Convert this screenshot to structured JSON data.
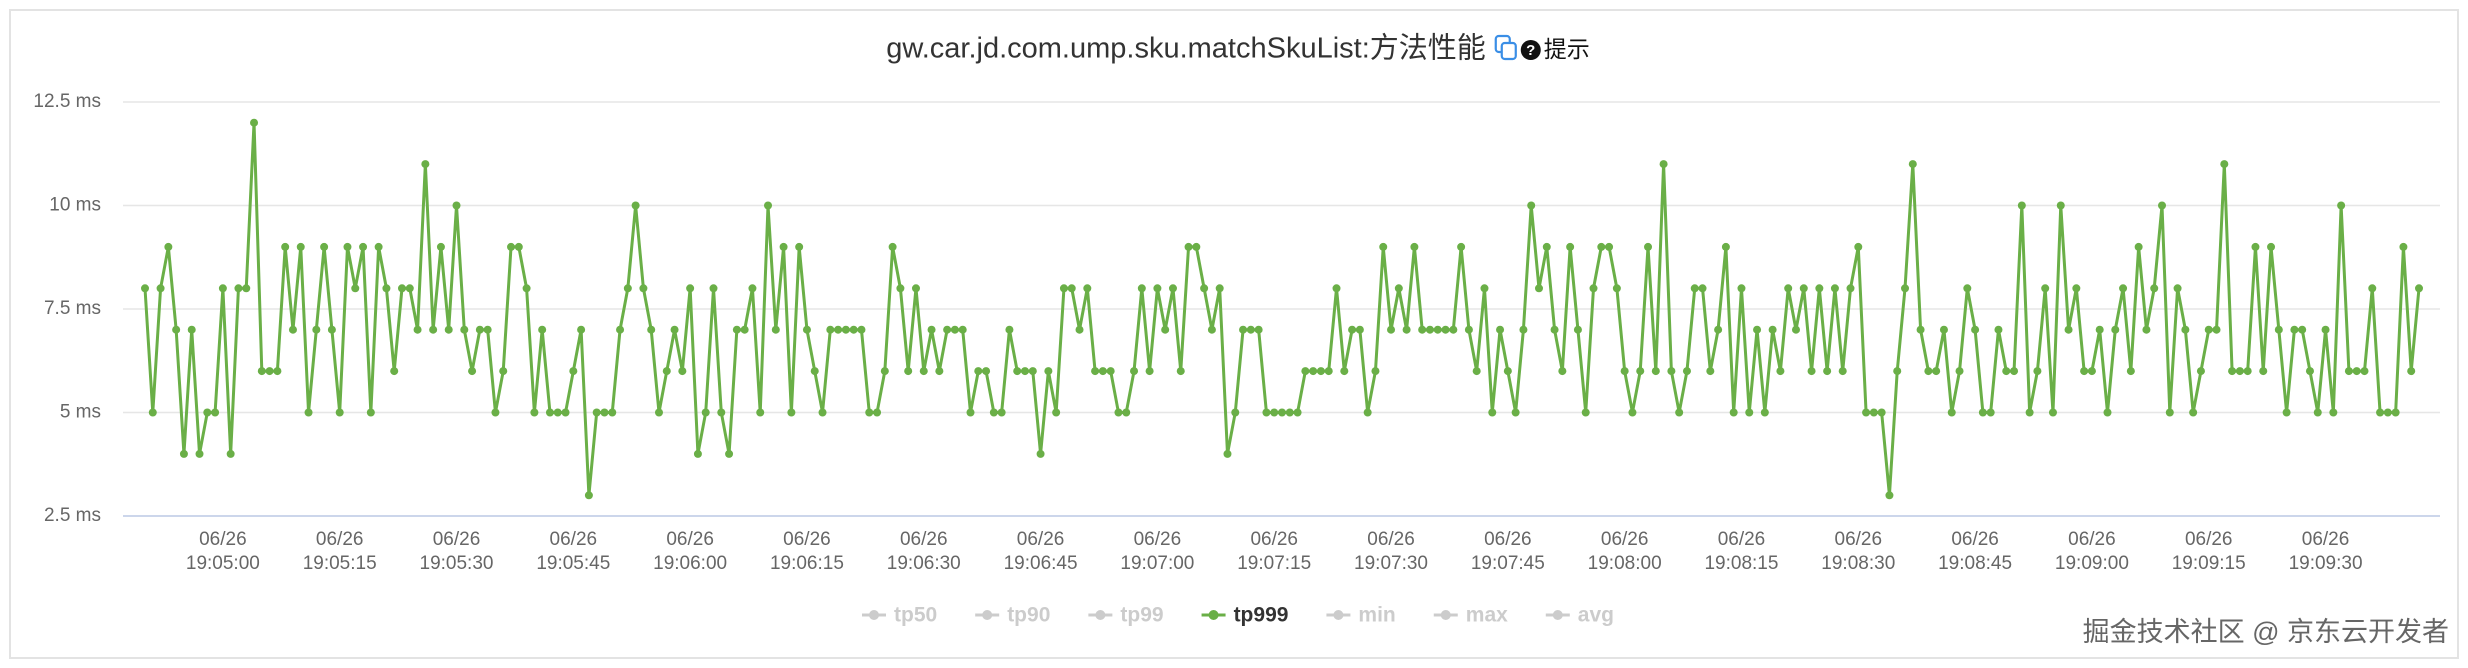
{
  "chart_data": {
    "type": "line",
    "title": "gw.car.jd.com.ump.sku.matchSkuList:方法性能",
    "hint": "提示",
    "watermark": "掘金技术社区 @ 京东云开发者",
    "ylim": [
      2.5,
      12.5
    ],
    "yticks": [
      {
        "value": 2.5,
        "label": "2.5 ms"
      },
      {
        "value": 5,
        "label": "5 ms"
      },
      {
        "value": 7.5,
        "label": "7.5 ms"
      },
      {
        "value": 10,
        "label": "10 ms"
      },
      {
        "value": 12.5,
        "label": "12.5 ms"
      }
    ],
    "grid": true,
    "legend_position": "bottom",
    "hidden_legend_color": "#cccccc",
    "categories": [
      null,
      null,
      null,
      null,
      null,
      null,
      null,
      null,
      null,
      null,
      [
        "06/26",
        "19:05:00"
      ],
      null,
      null,
      null,
      null,
      null,
      null,
      null,
      null,
      null,
      null,
      null,
      null,
      null,
      null,
      [
        "06/26",
        "19:05:15"
      ],
      null,
      null,
      null,
      null,
      null,
      null,
      null,
      null,
      null,
      null,
      null,
      null,
      null,
      null,
      [
        "06/26",
        "19:05:30"
      ],
      null,
      null,
      null,
      null,
      null,
      null,
      null,
      null,
      null,
      null,
      null,
      null,
      null,
      null,
      [
        "06/26",
        "19:05:45"
      ],
      null,
      null,
      null,
      null,
      null,
      null,
      null,
      null,
      null,
      null,
      null,
      null,
      null,
      null,
      [
        "06/26",
        "19:06:00"
      ],
      null,
      null,
      null,
      null,
      null,
      null,
      null,
      null,
      null,
      null,
      null,
      null,
      null,
      null,
      [
        "06/26",
        "19:06:15"
      ],
      null,
      null,
      null,
      null,
      null,
      null,
      null,
      null,
      null,
      null,
      null,
      null,
      null,
      null,
      [
        "06/26",
        "19:06:30"
      ],
      null,
      null,
      null,
      null,
      null,
      null,
      null,
      null,
      null,
      null,
      null,
      null,
      null,
      null,
      [
        "06/26",
        "19:06:45"
      ],
      null,
      null,
      null,
      null,
      null,
      null,
      null,
      null,
      null,
      null,
      null,
      null,
      null,
      null,
      [
        "06/26",
        "19:07:00"
      ],
      null,
      null,
      null,
      null,
      null,
      null,
      null,
      null,
      null,
      null,
      null,
      null,
      null,
      null,
      [
        "06/26",
        "19:07:15"
      ],
      null,
      null,
      null,
      null,
      null,
      null,
      null,
      null,
      null,
      null,
      null,
      null,
      null,
      null,
      [
        "06/26",
        "19:07:30"
      ],
      null,
      null,
      null,
      null,
      null,
      null,
      null,
      null,
      null,
      null,
      null,
      null,
      null,
      null,
      [
        "06/26",
        "19:07:45"
      ],
      null,
      null,
      null,
      null,
      null,
      null,
      null,
      null,
      null,
      null,
      null,
      null,
      null,
      null,
      [
        "06/26",
        "19:08:00"
      ],
      null,
      null,
      null,
      null,
      null,
      null,
      null,
      null,
      null,
      null,
      null,
      null,
      null,
      null,
      [
        "06/26",
        "19:08:15"
      ],
      null,
      null,
      null,
      null,
      null,
      null,
      null,
      null,
      null,
      null,
      null,
      null,
      null,
      null,
      [
        "06/26",
        "19:08:30"
      ],
      null,
      null,
      null,
      null,
      null,
      null,
      null,
      null,
      null,
      null,
      null,
      null,
      null,
      null,
      [
        "06/26",
        "19:08:45"
      ],
      null,
      null,
      null,
      null,
      null,
      null,
      null,
      null,
      null,
      null,
      null,
      null,
      null,
      null,
      [
        "06/26",
        "19:09:00"
      ],
      null,
      null,
      null,
      null,
      null,
      null,
      null,
      null,
      null,
      null,
      null,
      null,
      null,
      null,
      [
        "06/26",
        "19:09:15"
      ],
      null,
      null,
      null,
      null,
      null,
      null,
      null,
      null,
      null,
      null,
      null,
      null,
      null,
      null,
      [
        "06/26",
        "19:09:30"
      ],
      null,
      null,
      null,
      null,
      null,
      null,
      null,
      null,
      null,
      null,
      null,
      null
    ],
    "series": [
      {
        "name": "tp999",
        "color": "#6aaf47",
        "values": [
          8,
          5,
          8,
          9,
          7,
          4,
          7,
          4,
          5,
          5,
          8,
          4,
          8,
          8,
          12,
          6,
          6,
          6,
          9,
          7,
          9,
          5,
          7,
          9,
          7,
          5,
          9,
          8,
          9,
          5,
          9,
          8,
          6,
          8,
          8,
          7,
          11,
          7,
          9,
          7,
          10,
          7,
          6,
          7,
          7,
          5,
          6,
          9,
          9,
          8,
          5,
          7,
          5,
          5,
          5,
          6,
          7,
          3,
          5,
          5,
          5,
          7,
          8,
          10,
          8,
          7,
          5,
          6,
          7,
          6,
          8,
          4,
          5,
          8,
          5,
          4,
          7,
          7,
          8,
          5,
          10,
          7,
          9,
          5,
          9,
          7,
          6,
          5,
          7,
          7,
          7,
          7,
          7,
          5,
          5,
          6,
          9,
          8,
          6,
          8,
          6,
          7,
          6,
          7,
          7,
          7,
          5,
          6,
          6,
          5,
          5,
          7,
          6,
          6,
          6,
          4,
          6,
          5,
          8,
          8,
          7,
          8,
          6,
          6,
          6,
          5,
          5,
          6,
          8,
          6,
          8,
          7,
          8,
          6,
          9,
          9,
          8,
          7,
          8,
          4,
          5,
          7,
          7,
          7,
          5,
          5,
          5,
          5,
          5,
          6,
          6,
          6,
          6,
          8,
          6,
          7,
          7,
          5,
          6,
          9,
          7,
          8,
          7,
          9,
          7,
          7,
          7,
          7,
          7,
          9,
          7,
          6,
          8,
          5,
          7,
          6,
          5,
          7,
          10,
          8,
          9,
          7,
          6,
          9,
          7,
          5,
          8,
          9,
          9,
          8,
          6,
          5,
          6,
          9,
          6,
          11,
          6,
          5,
          6,
          8,
          8,
          6,
          7,
          9,
          5,
          8,
          5,
          7,
          5,
          7,
          6,
          8,
          7,
          8,
          6,
          8,
          6,
          8,
          6,
          8,
          9,
          5,
          5,
          5,
          3,
          6,
          8,
          11,
          7,
          6,
          6,
          7,
          5,
          6,
          8,
          7,
          5,
          5,
          7,
          6,
          6,
          10,
          5,
          6,
          8,
          5,
          10,
          7,
          8,
          6,
          6,
          7,
          5,
          7,
          8,
          6,
          9,
          7,
          8,
          10,
          5,
          8,
          7,
          5,
          6,
          7,
          7,
          11,
          6,
          6,
          6,
          9,
          6,
          9,
          7,
          5,
          7,
          7,
          6,
          5,
          7,
          5,
          10,
          6,
          6,
          6,
          8,
          5,
          5,
          5,
          9,
          6,
          8
        ]
      }
    ],
    "legend_order": [
      "tp50",
      "tp90",
      "tp99",
      "tp999",
      "min",
      "max",
      "avg"
    ]
  }
}
